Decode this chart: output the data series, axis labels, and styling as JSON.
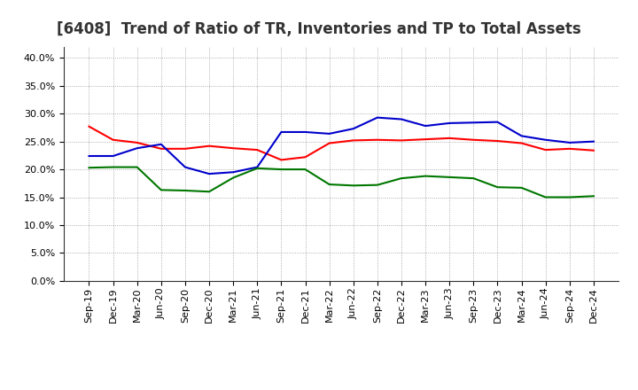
{
  "title": "[6408]  Trend of Ratio of TR, Inventories and TP to Total Assets",
  "labels": [
    "Sep-19",
    "Dec-19",
    "Mar-20",
    "Jun-20",
    "Sep-20",
    "Dec-20",
    "Mar-21",
    "Jun-21",
    "Sep-21",
    "Dec-21",
    "Mar-22",
    "Jun-22",
    "Sep-22",
    "Dec-22",
    "Mar-23",
    "Jun-23",
    "Sep-23",
    "Dec-23",
    "Mar-24",
    "Jun-24",
    "Sep-24",
    "Dec-24"
  ],
  "trade_receivables": [
    0.277,
    0.253,
    0.248,
    0.237,
    0.237,
    0.242,
    0.238,
    0.235,
    0.217,
    0.222,
    0.247,
    0.252,
    0.253,
    0.252,
    0.254,
    0.256,
    0.253,
    0.251,
    0.247,
    0.235,
    0.237,
    0.234
  ],
  "inventories": [
    0.224,
    0.224,
    0.238,
    0.245,
    0.204,
    0.192,
    0.195,
    0.204,
    0.267,
    0.267,
    0.264,
    0.273,
    0.293,
    0.29,
    0.278,
    0.283,
    0.284,
    0.285,
    0.26,
    0.253,
    0.248,
    0.25
  ],
  "trade_payables": [
    0.203,
    0.204,
    0.204,
    0.163,
    0.162,
    0.16,
    0.185,
    0.202,
    0.2,
    0.2,
    0.173,
    0.171,
    0.172,
    0.184,
    0.188,
    0.186,
    0.184,
    0.168,
    0.167,
    0.15,
    0.15,
    0.152
  ],
  "ylim": [
    0.0,
    0.42
  ],
  "yticks": [
    0.0,
    0.05,
    0.1,
    0.15,
    0.2,
    0.25,
    0.3,
    0.35,
    0.4
  ],
  "tr_color": "#ff0000",
  "inv_color": "#0000cc",
  "tp_color": "#007700",
  "bg_color": "#ffffff",
  "grid_color": "#999999",
  "title_fontsize": 12,
  "legend_fontsize": 9.5,
  "tick_fontsize": 8
}
